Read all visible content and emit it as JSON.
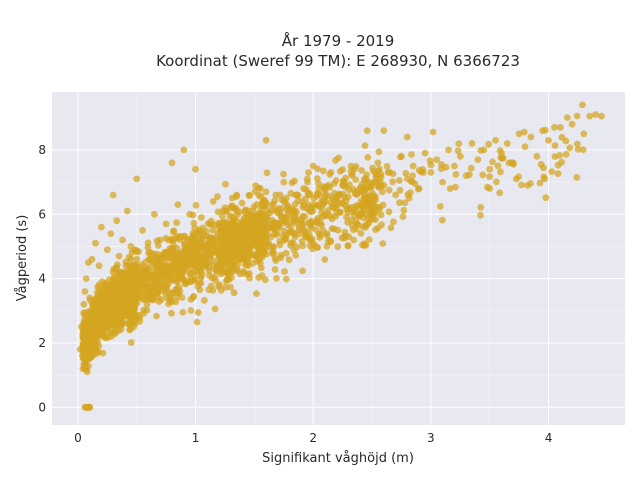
{
  "chart_data": {
    "type": "scatter",
    "title_line1": "År 1979 - 2019",
    "title_line2": "Koordinat (Sweref 99 TM): E 268930, N 6366723",
    "xlabel": "Signifikant våghöjd (m)",
    "ylabel": "Vågperiod (s)",
    "xlim": [
      -0.22,
      4.65
    ],
    "ylim": [
      -0.55,
      9.8
    ],
    "xticks": [
      0,
      1,
      2,
      3,
      4
    ],
    "yticks": [
      0,
      2,
      4,
      6,
      8
    ],
    "grid": true,
    "legend": "none",
    "colors": {
      "marker": "#d4a520",
      "plot_background": "#e8e8f0",
      "grid": "#ffffff"
    },
    "series": [
      {
        "x": [
          0.02,
          0.04,
          0.06,
          0.08,
          0.05,
          0.03,
          0.07,
          0.09,
          0.05,
          0.06,
          0.08,
          0.1,
          0.12,
          0.15,
          0.18,
          0.2,
          0.22,
          0.25,
          0.28,
          0.3,
          0.33,
          0.35,
          0.38,
          0.4,
          0.42,
          0.45,
          0.5,
          0.55,
          0.6,
          0.65,
          0.7,
          0.75,
          0.8,
          0.85,
          0.9,
          0.95,
          1.0,
          1.05,
          1.1,
          1.15,
          1.2,
          1.25,
          1.3,
          1.35,
          1.4,
          1.45,
          1.5,
          1.55,
          1.6,
          1.65,
          1.7,
          1.75,
          1.8,
          1.85,
          1.9,
          1.95,
          2.0,
          2.05,
          2.1,
          2.15,
          2.2,
          2.25,
          2.3,
          2.35,
          2.4,
          2.45,
          2.5,
          2.55,
          2.6,
          2.65,
          2.7,
          2.75,
          2.8,
          2.85,
          2.9,
          2.95,
          3.0,
          3.05,
          3.1,
          3.15,
          3.2,
          3.25,
          3.3,
          3.35,
          3.4,
          3.45,
          3.5,
          3.55,
          3.6,
          3.65,
          3.7,
          3.75,
          3.8,
          3.85,
          3.9,
          3.95,
          4.0,
          4.1,
          4.2,
          4.3,
          4.35,
          4.4,
          4.45,
          0.06,
          0.08,
          0.1,
          0.09,
          0.07,
          0.08,
          0.1,
          0.3,
          0.5,
          0.8,
          1.0,
          1.6,
          2.6,
          2.0,
          1.3,
          0.9,
          2.8,
          3.5,
          4.05
        ],
        "y": [
          1.8,
          1.6,
          1.3,
          1.1,
          3.2,
          2.5,
          4.0,
          4.5,
          2.2,
          3.6,
          2.7,
          3.4,
          4.6,
          5.1,
          4.4,
          5.6,
          3.6,
          4.9,
          5.4,
          4.2,
          5.8,
          4.7,
          5.2,
          4.0,
          6.1,
          5.0,
          4.6,
          5.5,
          4.8,
          6.0,
          5.2,
          5.7,
          4.9,
          6.3,
          5.3,
          6.0,
          4.7,
          5.9,
          5.1,
          6.4,
          5.6,
          6.2,
          5.0,
          6.6,
          5.7,
          6.1,
          5.4,
          6.8,
          5.9,
          6.3,
          5.6,
          7.0,
          6.1,
          6.6,
          5.8,
          7.1,
          6.3,
          6.8,
          6.0,
          7.3,
          6.5,
          6.9,
          6.2,
          7.4,
          6.7,
          7.1,
          6.4,
          7.6,
          6.9,
          7.3,
          6.6,
          7.8,
          7.1,
          7.5,
          6.8,
          7.9,
          7.3,
          7.7,
          7.0,
          8.0,
          7.5,
          7.8,
          7.2,
          8.2,
          7.7,
          8.0,
          7.4,
          8.3,
          7.9,
          8.2,
          7.6,
          8.5,
          8.1,
          8.4,
          7.8,
          8.6,
          8.3,
          8.7,
          8.8,
          8.5,
          9.05,
          9.1,
          9.05,
          0.0,
          0.0,
          0.0,
          0.0,
          0.0,
          0.0,
          0.0,
          6.6,
          7.1,
          7.6,
          7.4,
          8.3,
          8.6,
          7.5,
          6.2,
          8.0,
          8.4,
          6.8,
          8.7
        ]
      }
    ]
  }
}
